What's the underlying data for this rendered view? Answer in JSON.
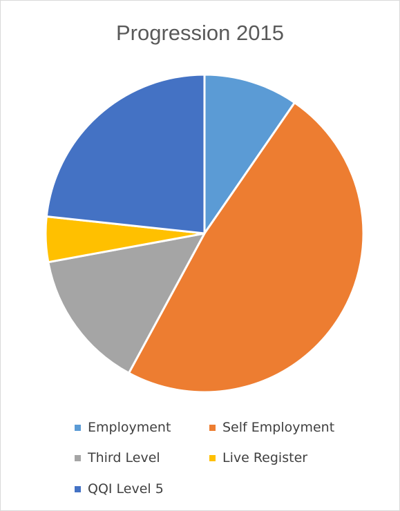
{
  "chart_data": {
    "type": "pie",
    "title": "Progression 2015",
    "slices": [
      {
        "name": "Employment",
        "value": 9.6,
        "color": "#5B9BD5"
      },
      {
        "name": "Self Employment",
        "value": 48.3,
        "color": "#ED7D31"
      },
      {
        "name": "Third Level",
        "value": 14.2,
        "color": "#A5A5A5"
      },
      {
        "name": "Live Register",
        "value": 4.6,
        "color": "#FFC000"
      },
      {
        "name": "QQI Level 5",
        "value": 23.3,
        "color": "#4472C4"
      }
    ],
    "legend_position": "bottom"
  }
}
